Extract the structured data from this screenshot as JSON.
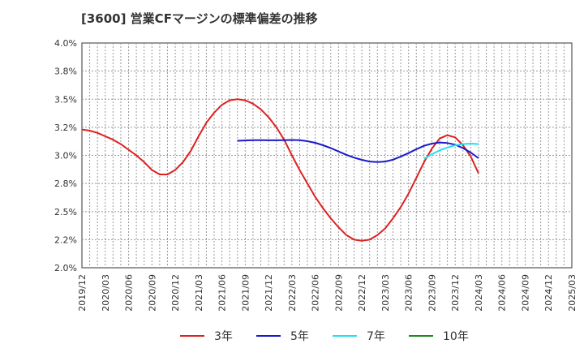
{
  "title": "[3600]  営業CFマージンの標準偏差の推移",
  "chart_data": {
    "type": "line",
    "title": "[3600]  営業CFマージンの標準偏差の推移",
    "xlabel": "",
    "ylabel": "",
    "ylim": [
      2.0,
      4.0
    ],
    "y_ticks": [
      "2.0%",
      "2.2%",
      "2.5%",
      "2.8%",
      "3.0%",
      "3.2%",
      "3.5%",
      "3.8%",
      "4.0%"
    ],
    "x_ticks": [
      "2019/12",
      "2020/03",
      "2020/06",
      "2020/09",
      "2020/12",
      "2021/03",
      "2021/06",
      "2021/09",
      "2021/12",
      "2022/03",
      "2022/06",
      "2022/09",
      "2022/12",
      "2023/03",
      "2023/06",
      "2023/09",
      "2023/12",
      "2024/03",
      "2024/06",
      "2024/09",
      "2024/12",
      "2025/03"
    ],
    "grid": true,
    "legend_position": "bottom",
    "series": [
      {
        "name": "3年",
        "color": "#dd2222",
        "points": [
          [
            "2019/12",
            3.23
          ],
          [
            "2020/01",
            3.22
          ],
          [
            "2020/02",
            3.2
          ],
          [
            "2020/03",
            3.17
          ],
          [
            "2020/04",
            3.14
          ],
          [
            "2020/05",
            3.1
          ],
          [
            "2020/06",
            3.05
          ],
          [
            "2020/07",
            3.0
          ],
          [
            "2020/08",
            2.94
          ],
          [
            "2020/09",
            2.87
          ],
          [
            "2020/10",
            2.83
          ],
          [
            "2020/11",
            2.83
          ],
          [
            "2020/12",
            2.87
          ],
          [
            "2021/01",
            2.94
          ],
          [
            "2021/02",
            3.04
          ],
          [
            "2021/03",
            3.17
          ],
          [
            "2021/04",
            3.29
          ],
          [
            "2021/05",
            3.38
          ],
          [
            "2021/06",
            3.45
          ],
          [
            "2021/07",
            3.49
          ],
          [
            "2021/08",
            3.5
          ],
          [
            "2021/09",
            3.49
          ],
          [
            "2021/10",
            3.46
          ],
          [
            "2021/11",
            3.41
          ],
          [
            "2021/12",
            3.34
          ],
          [
            "2022/01",
            3.25
          ],
          [
            "2022/02",
            3.14
          ],
          [
            "2022/03",
            3.0
          ],
          [
            "2022/04",
            2.87
          ],
          [
            "2022/05",
            2.75
          ],
          [
            "2022/06",
            2.63
          ],
          [
            "2022/07",
            2.53
          ],
          [
            "2022/08",
            2.44
          ],
          [
            "2022/09",
            2.36
          ],
          [
            "2022/10",
            2.29
          ],
          [
            "2022/11",
            2.25
          ],
          [
            "2022/12",
            2.24
          ],
          [
            "2023/01",
            2.25
          ],
          [
            "2023/02",
            2.29
          ],
          [
            "2023/03",
            2.35
          ],
          [
            "2023/04",
            2.44
          ],
          [
            "2023/05",
            2.54
          ],
          [
            "2023/06",
            2.66
          ],
          [
            "2023/07",
            2.8
          ],
          [
            "2023/08",
            2.94
          ],
          [
            "2023/09",
            3.06
          ],
          [
            "2023/10",
            3.15
          ],
          [
            "2023/11",
            3.18
          ],
          [
            "2023/12",
            3.16
          ],
          [
            "2024/01",
            3.09
          ],
          [
            "2024/02",
            2.99
          ],
          [
            "2024/03",
            2.84
          ]
        ]
      },
      {
        "name": "5年",
        "color": "#1a1acc",
        "points": [
          [
            "2021/08",
            3.13
          ],
          [
            "2021/09",
            3.133
          ],
          [
            "2021/10",
            3.135
          ],
          [
            "2021/11",
            3.135
          ],
          [
            "2021/12",
            3.134
          ],
          [
            "2022/01",
            3.134
          ],
          [
            "2022/02",
            3.135
          ],
          [
            "2022/03",
            3.137
          ],
          [
            "2022/04",
            3.135
          ],
          [
            "2022/05",
            3.126
          ],
          [
            "2022/06",
            3.112
          ],
          [
            "2022/07",
            3.09
          ],
          [
            "2022/08",
            3.065
          ],
          [
            "2022/09",
            3.035
          ],
          [
            "2022/10",
            3.005
          ],
          [
            "2022/11",
            2.98
          ],
          [
            "2022/12",
            2.96
          ],
          [
            "2023/01",
            2.945
          ],
          [
            "2023/02",
            2.94
          ],
          [
            "2023/03",
            2.945
          ],
          [
            "2023/04",
            2.962
          ],
          [
            "2023/05",
            2.99
          ],
          [
            "2023/06",
            3.02
          ],
          [
            "2023/07",
            3.055
          ],
          [
            "2023/08",
            3.085
          ],
          [
            "2023/09",
            3.105
          ],
          [
            "2023/10",
            3.115
          ],
          [
            "2023/11",
            3.11
          ],
          [
            "2023/12",
            3.095
          ],
          [
            "2024/01",
            3.065
          ],
          [
            "2024/02",
            3.025
          ],
          [
            "2024/03",
            2.975
          ]
        ]
      },
      {
        "name": "7年",
        "color": "#22e0ee",
        "points": [
          [
            "2023/08",
            2.97
          ],
          [
            "2023/09",
            3.01
          ],
          [
            "2023/10",
            3.045
          ],
          [
            "2023/11",
            3.07
          ],
          [
            "2023/12",
            3.09
          ],
          [
            "2024/01",
            3.1
          ],
          [
            "2024/02",
            3.105
          ],
          [
            "2024/03",
            3.1
          ]
        ]
      },
      {
        "name": "10年",
        "color": "#228822",
        "points": []
      }
    ]
  }
}
